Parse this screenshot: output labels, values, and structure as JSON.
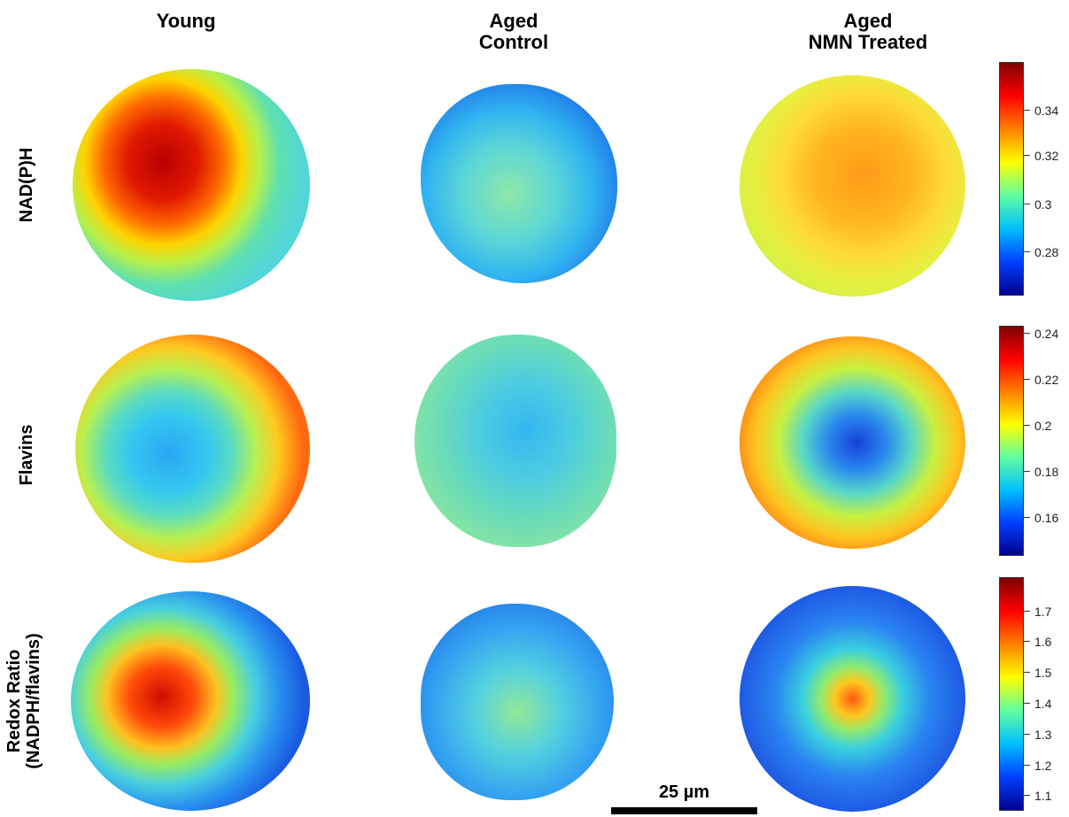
{
  "columns": [
    "Young",
    "Aged\nControl",
    "Aged\nNMN Treated"
  ],
  "rows": [
    "NAD(P)H",
    "Flavins",
    "Redox Ratio\n(NADPH/flavins)"
  ],
  "colorbars": [
    {
      "ticks": [
        "0.34",
        "0.32",
        "0.3",
        "0.28"
      ]
    },
    {
      "ticks": [
        "0.24",
        "0.22",
        "0.2",
        "0.18",
        "0.16"
      ]
    },
    {
      "ticks": [
        "1.7",
        "1.6",
        "1.5",
        "1.4",
        "1.3",
        "1.2",
        "1.1"
      ]
    }
  ],
  "scale_bar": {
    "label": "25 µm"
  }
}
